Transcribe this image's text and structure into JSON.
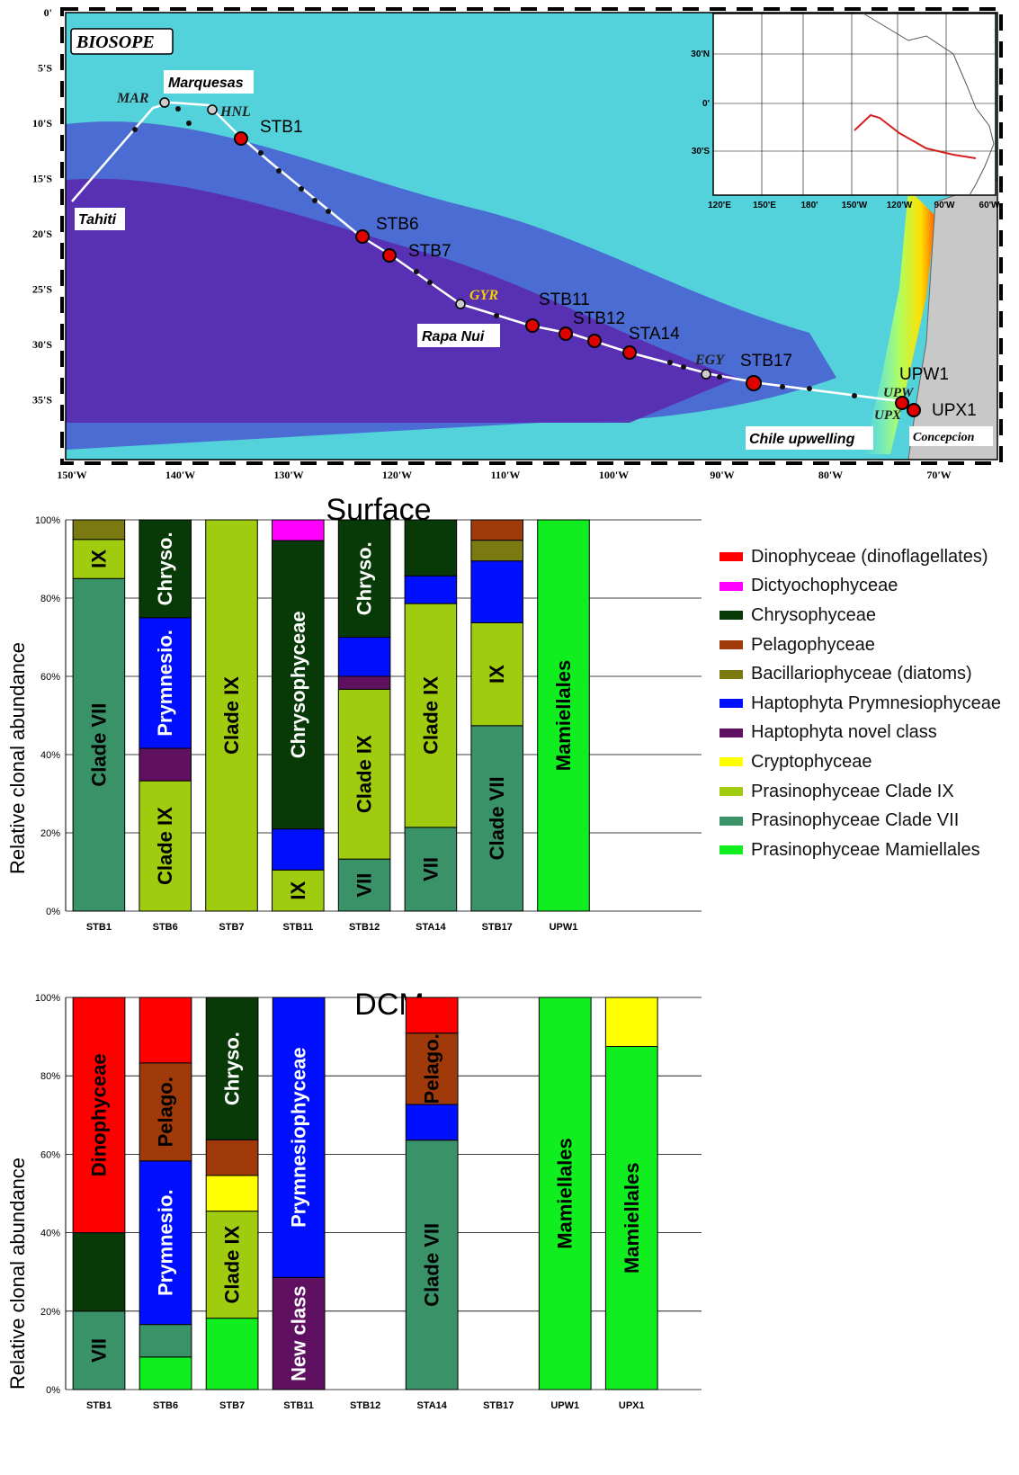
{
  "map": {
    "badge": "BIOSOPE",
    "lat_labels": [
      "0'",
      "5'S",
      "10'S",
      "15'S",
      "20'S",
      "25'S",
      "30'S",
      "35'S"
    ],
    "lon_labels": [
      "150'W",
      "140'W",
      "130'W",
      "120'W",
      "110'W",
      "100'W",
      "90'W",
      "80'W",
      "70'W"
    ],
    "places": {
      "marquesas": "Marquesas",
      "tahiti": "Tahiti",
      "rapa_nui": "Rapa Nui",
      "chile_upwelling": "Chile upwelling",
      "concepcion": "Concepcion"
    },
    "waypoints": {
      "mar": "MAR",
      "hnl": "HNL",
      "gyr": "GYR",
      "egy": "EGY",
      "upw": "UPW",
      "upx": "UPX"
    },
    "stations": {
      "stb1": "STB1",
      "stb6": "STB6",
      "stb7": "STB7",
      "stb11": "STB11",
      "stb12": "STB12",
      "sta14": "STA14",
      "stb17": "STB17",
      "upw1": "UPW1",
      "upx1": "UPX1"
    },
    "inset": {
      "lat_labels": [
        "30'N",
        "0'",
        "30'S"
      ],
      "lon_labels": [
        "120'E",
        "150'E",
        "180'",
        "150'W",
        "120'W",
        "90'W",
        "60'W"
      ]
    },
    "colors": {
      "track": "#ffffff",
      "station": "#e00000",
      "inset_track": "#d62020"
    }
  },
  "legend": [
    {
      "label": "Dinophyceae (dinoflagellates)",
      "color": "#ff0000"
    },
    {
      "label": "Dictyochophyceae",
      "color": "#ff00ff"
    },
    {
      "label": "Chrysophyceae",
      "color": "#083a08"
    },
    {
      "label": "Pelagophyceae",
      "color": "#a03a0a"
    },
    {
      "label": "Bacillariophyceae (diatoms)",
      "color": "#7a7a10"
    },
    {
      "label": "Haptophyta Prymnesiophyceae",
      "color": "#0010ff"
    },
    {
      "label": "Haptophyta novel class",
      "color": "#601060"
    },
    {
      "label": "Cryptophyceae",
      "color": "#ffff00"
    },
    {
      "label": "Prasinophyceae Clade IX",
      "color": "#a0cc10"
    },
    {
      "label": "Prasinophyceae Clade VII",
      "color": "#3a9268"
    },
    {
      "label": "Prasinophyceae Mamiellales",
      "color": "#10ee20"
    }
  ],
  "chart_data": [
    {
      "type": "bar",
      "title": "Surface",
      "ylabel": "Relative clonal abundance",
      "ylim": [
        0,
        100
      ],
      "yticks": [
        "0%",
        "20%",
        "40%",
        "60%",
        "80%",
        "100%"
      ],
      "grid": true,
      "stacked": true,
      "categories": [
        "STB1",
        "STB6",
        "STB7",
        "STB11",
        "STB12",
        "STA14",
        "STB17",
        "UPW1"
      ],
      "stacks": [
        [
          {
            "name": "Prasinophyceae Clade VII",
            "value": 85,
            "label": "Clade VII"
          },
          {
            "name": "Prasinophyceae Clade IX",
            "value": 10,
            "label": "IX"
          },
          {
            "name": "Bacillariophyceae (diatoms)",
            "value": 5,
            "label": ""
          }
        ],
        [
          {
            "name": "Prasinophyceae Clade IX",
            "value": 33.3,
            "label": "Clade IX"
          },
          {
            "name": "Haptophyta novel class",
            "value": 8.3,
            "label": ""
          },
          {
            "name": "Haptophyta Prymnesiophyceae",
            "value": 33.4,
            "label": "Prymnesio."
          },
          {
            "name": "Chrysophyceae",
            "value": 25,
            "label": "Chryso."
          }
        ],
        [
          {
            "name": "Prasinophyceae Clade IX",
            "value": 100,
            "label": "Clade IX"
          }
        ],
        [
          {
            "name": "Prasinophyceae Clade IX",
            "value": 10.5,
            "label": "IX"
          },
          {
            "name": "Haptophyta Prymnesiophyceae",
            "value": 10.5,
            "label": ""
          },
          {
            "name": "Chrysophyceae",
            "value": 73.7,
            "label": "Chrysophyceae"
          },
          {
            "name": "Dictyochophyceae",
            "value": 5.3,
            "label": ""
          }
        ],
        [
          {
            "name": "Prasinophyceae Clade VII",
            "value": 13.3,
            "label": "VII"
          },
          {
            "name": "Prasinophyceae Clade IX",
            "value": 43.4,
            "label": "Clade IX"
          },
          {
            "name": "Haptophyta novel class",
            "value": 3.3,
            "label": ""
          },
          {
            "name": "Haptophyta Prymnesiophyceae",
            "value": 10,
            "label": ""
          },
          {
            "name": "Chrysophyceae",
            "value": 30,
            "label": "Chryso."
          }
        ],
        [
          {
            "name": "Prasinophyceae Clade VII",
            "value": 21.4,
            "label": "VII"
          },
          {
            "name": "Prasinophyceae Clade IX",
            "value": 57.2,
            "label": "Clade IX"
          },
          {
            "name": "Haptophyta Prymnesiophyceae",
            "value": 7.1,
            "label": ""
          },
          {
            "name": "Chrysophyceae",
            "value": 14.3,
            "label": ""
          }
        ],
        [
          {
            "name": "Prasinophyceae Clade VII",
            "value": 47.4,
            "label": "Clade VII"
          },
          {
            "name": "Prasinophyceae Clade IX",
            "value": 26.3,
            "label": "IX"
          },
          {
            "name": "Haptophyta Prymnesiophyceae",
            "value": 15.8,
            "label": ""
          },
          {
            "name": "Bacillariophyceae (diatoms)",
            "value": 5.3,
            "label": ""
          },
          {
            "name": "Pelagophyceae",
            "value": 5.2,
            "label": ""
          }
        ],
        [
          {
            "name": "Prasinophyceae Mamiellales",
            "value": 100,
            "label": "Mamiellales"
          }
        ]
      ]
    },
    {
      "type": "bar",
      "title": "DCM",
      "ylabel": "Relative clonal abundance",
      "ylim": [
        0,
        100
      ],
      "yticks": [
        "0%",
        "20%",
        "40%",
        "60%",
        "80%",
        "100%"
      ],
      "grid": true,
      "stacked": true,
      "categories": [
        "STB1",
        "STB6",
        "STB7",
        "STB11",
        "STB12",
        "STA14",
        "STB17",
        "UPW1",
        "UPX1"
      ],
      "stacks": [
        [
          {
            "name": "Prasinophyceae Clade VII",
            "value": 20,
            "label": "VII"
          },
          {
            "name": "Chrysophyceae",
            "value": 20,
            "label": ""
          },
          {
            "name": "Dinophyceae (dinoflagellates)",
            "value": 60,
            "label": "Dinophyceae"
          }
        ],
        [
          {
            "name": "Prasinophyceae Mamiellales",
            "value": 8.3,
            "label": ""
          },
          {
            "name": "Prasinophyceae Clade VII",
            "value": 8.3,
            "label": ""
          },
          {
            "name": "Haptophyta Prymnesiophyceae",
            "value": 41.7,
            "label": "Prymnesio."
          },
          {
            "name": "Pelagophyceae",
            "value": 25,
            "label": "Pelago."
          },
          {
            "name": "Dinophyceae (dinoflagellates)",
            "value": 16.7,
            "label": ""
          }
        ],
        [
          {
            "name": "Prasinophyceae Mamiellales",
            "value": 18.2,
            "label": ""
          },
          {
            "name": "Prasinophyceae Clade IX",
            "value": 27.3,
            "label": "Clade IX"
          },
          {
            "name": "Cryptophyceae",
            "value": 9.1,
            "label": ""
          },
          {
            "name": "Pelagophyceae",
            "value": 9.1,
            "label": ""
          },
          {
            "name": "Chrysophyceae",
            "value": 36.3,
            "label": "Chryso."
          }
        ],
        [
          {
            "name": "Haptophyta novel class",
            "value": 28.6,
            "label": "New class"
          },
          {
            "name": "Haptophyta Prymnesiophyceae",
            "value": 71.4,
            "label": "Prymnesiophyceae"
          }
        ],
        [],
        [
          {
            "name": "Prasinophyceae Clade VII",
            "value": 63.6,
            "label": "Clade VII"
          },
          {
            "name": "Haptophyta Prymnesiophyceae",
            "value": 9.1,
            "label": ""
          },
          {
            "name": "Pelagophyceae",
            "value": 18.2,
            "label": "Pelago."
          },
          {
            "name": "Dinophyceae (dinoflagellates)",
            "value": 9.1,
            "label": ""
          }
        ],
        [],
        [
          {
            "name": "Prasinophyceae Mamiellales",
            "value": 100,
            "label": "Mamiellales"
          }
        ],
        [
          {
            "name": "Prasinophyceae Mamiellales",
            "value": 87.5,
            "label": "Mamiellales"
          },
          {
            "name": "Cryptophyceae",
            "value": 12.5,
            "label": ""
          }
        ]
      ]
    }
  ]
}
